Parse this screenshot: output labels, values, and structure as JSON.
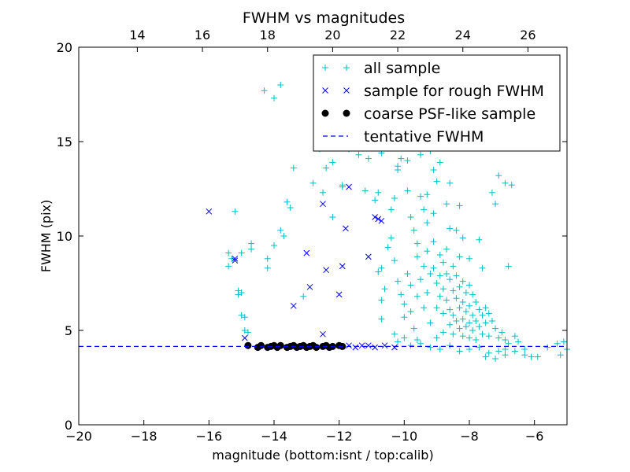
{
  "chart_data": {
    "type": "scatter",
    "title": "FWHM vs magnitudes",
    "xlabel": "magnitude (bottom:isnt / top:calib)",
    "ylabel": "FWHM (pix)",
    "xlim": [
      -20,
      -5
    ],
    "ylim": [
      0,
      20
    ],
    "top_xlim": [
      12.2,
      27.2
    ],
    "x_ticks": [
      -20,
      -18,
      -16,
      -14,
      -12,
      -10,
      -8,
      -6
    ],
    "x_tick_labels": [
      "−20",
      "−18",
      "−16",
      "−14",
      "−12",
      "−10",
      "−8",
      "−6"
    ],
    "y_ticks": [
      0,
      5,
      10,
      15,
      20
    ],
    "y_tick_labels": [
      "0",
      "5",
      "10",
      "15",
      "20"
    ],
    "top_ticks": [
      14,
      16,
      18,
      20,
      22,
      24,
      26
    ],
    "top_tick_labels": [
      "14",
      "16",
      "18",
      "20",
      "22",
      "24",
      "26"
    ],
    "grid": false,
    "legend_position": "upper-right",
    "series": [
      {
        "name": "all sample",
        "marker": "+",
        "color": "#00bfbf",
        "points": [
          [
            -14.3,
            17.7
          ],
          [
            -14.0,
            17.3
          ],
          [
            -13.8,
            18.0
          ],
          [
            -15.2,
            11.3
          ],
          [
            -15.4,
            9.1
          ],
          [
            -15.3,
            8.8
          ],
          [
            -15.4,
            8.4
          ],
          [
            -15.0,
            9.1
          ],
          [
            -14.7,
            9.6
          ],
          [
            -14.7,
            9.3
          ],
          [
            -15.1,
            7.1
          ],
          [
            -15.0,
            7.0
          ],
          [
            -15.1,
            6.9
          ],
          [
            -15.0,
            5.8
          ],
          [
            -14.9,
            5.7
          ],
          [
            -14.9,
            5.0
          ],
          [
            -14.8,
            4.9
          ],
          [
            -14.2,
            8.8
          ],
          [
            -14.2,
            8.3
          ],
          [
            -14.0,
            9.5
          ],
          [
            -13.8,
            10.3
          ],
          [
            -13.7,
            10.0
          ],
          [
            -13.6,
            11.8
          ],
          [
            -13.5,
            11.5
          ],
          [
            -13.4,
            13.6
          ],
          [
            -13.1,
            6.8
          ],
          [
            -12.8,
            12.8
          ],
          [
            -12.6,
            14.6
          ],
          [
            -12.5,
            12.3
          ],
          [
            -12.4,
            13.6
          ],
          [
            -12.2,
            13.9
          ],
          [
            -12.2,
            11.0
          ],
          [
            -11.9,
            12.6
          ],
          [
            -11.9,
            12.7
          ],
          [
            -11.7,
            14.6
          ],
          [
            -11.6,
            15.9
          ],
          [
            -11.4,
            14.3
          ],
          [
            -11.4,
            16.0
          ],
          [
            -11.2,
            12.4
          ],
          [
            -11.1,
            14.1
          ],
          [
            -11.0,
            14.9
          ],
          [
            -10.9,
            11.9
          ],
          [
            -10.8,
            12.3
          ],
          [
            -10.7,
            14.4
          ],
          [
            -10.8,
            8.1
          ],
          [
            -10.7,
            8.3
          ],
          [
            -10.7,
            6.6
          ],
          [
            -10.7,
            5.6
          ],
          [
            -10.6,
            7.2
          ],
          [
            -10.5,
            9.4
          ],
          [
            -10.4,
            11.4
          ],
          [
            -10.3,
            12.0
          ],
          [
            -10.2,
            13.7
          ],
          [
            -10.2,
            13.5
          ],
          [
            -10.1,
            14.1
          ],
          [
            -9.9,
            14.0
          ],
          [
            -9.9,
            12.4
          ],
          [
            -9.8,
            11.0
          ],
          [
            -9.7,
            10.3
          ],
          [
            -9.6,
            9.6
          ],
          [
            -9.6,
            8.9
          ],
          [
            -9.5,
            14.3
          ],
          [
            -9.5,
            12.1
          ],
          [
            -9.4,
            11.4
          ],
          [
            -9.3,
            12.2
          ],
          [
            -9.3,
            10.7
          ],
          [
            -9.2,
            14.5
          ],
          [
            -9.1,
            13.5
          ],
          [
            -9.1,
            11.2
          ],
          [
            -9.0,
            12.9
          ],
          [
            -8.9,
            13.9
          ],
          [
            -8.7,
            11.7
          ],
          [
            -8.6,
            12.8
          ],
          [
            -8.6,
            10.4
          ],
          [
            -8.4,
            10.3
          ],
          [
            -8.3,
            11.6
          ],
          [
            -8.2,
            9.9
          ],
          [
            -8.0,
            8.8
          ],
          [
            -7.7,
            9.8
          ],
          [
            -7.6,
            8.3
          ],
          [
            -7.3,
            12.3
          ],
          [
            -7.2,
            11.7
          ],
          [
            -7.1,
            13.2
          ],
          [
            -6.9,
            12.8
          ],
          [
            -6.7,
            12.7
          ],
          [
            -6.8,
            8.4
          ],
          [
            -10.4,
            9.9
          ],
          [
            -10.3,
            8.7
          ],
          [
            -10.2,
            7.6
          ],
          [
            -10.1,
            6.9
          ],
          [
            -10.0,
            6.4
          ],
          [
            -10.0,
            5.7
          ],
          [
            -9.9,
            8.0
          ],
          [
            -9.8,
            7.4
          ],
          [
            -9.8,
            6.0
          ],
          [
            -9.7,
            5.1
          ],
          [
            -9.6,
            6.8
          ],
          [
            -9.6,
            4.5
          ],
          [
            -9.5,
            7.7
          ],
          [
            -9.4,
            8.4
          ],
          [
            -9.4,
            6.2
          ],
          [
            -9.3,
            9.2
          ],
          [
            -9.3,
            7.0
          ],
          [
            -9.2,
            8.0
          ],
          [
            -9.2,
            5.4
          ],
          [
            -9.1,
            9.7
          ],
          [
            -9.1,
            8.3
          ],
          [
            -9.0,
            7.5
          ],
          [
            -9.0,
            6.2
          ],
          [
            -9.0,
            4.6
          ],
          [
            -8.9,
            9.0
          ],
          [
            -8.9,
            7.9
          ],
          [
            -8.9,
            6.8
          ],
          [
            -8.8,
            8.6
          ],
          [
            -8.8,
            7.2
          ],
          [
            -8.8,
            5.9
          ],
          [
            -8.8,
            4.9
          ],
          [
            -8.7,
            9.3
          ],
          [
            -8.7,
            8.0
          ],
          [
            -8.7,
            6.6
          ],
          [
            -8.6,
            7.7
          ],
          [
            -8.6,
            6.1
          ],
          [
            -8.6,
            5.3
          ],
          [
            -8.5,
            8.4
          ],
          [
            -8.5,
            7.1
          ],
          [
            -8.5,
            5.8
          ],
          [
            -8.5,
            4.8
          ],
          [
            -8.4,
            7.9
          ],
          [
            -8.4,
            6.7
          ],
          [
            -8.4,
            5.5
          ],
          [
            -8.3,
            8.9
          ],
          [
            -8.3,
            7.3
          ],
          [
            -8.3,
            6.2
          ],
          [
            -8.3,
            5.1
          ],
          [
            -8.2,
            7.6
          ],
          [
            -8.2,
            6.5
          ],
          [
            -8.2,
            5.6
          ],
          [
            -8.2,
            4.7
          ],
          [
            -8.1,
            7.0
          ],
          [
            -8.1,
            6.0
          ],
          [
            -8.1,
            5.2
          ],
          [
            -8.0,
            7.4
          ],
          [
            -8.0,
            6.3
          ],
          [
            -8.0,
            5.4
          ],
          [
            -8.0,
            4.6
          ],
          [
            -7.9,
            6.9
          ],
          [
            -7.9,
            5.8
          ],
          [
            -7.9,
            5.0
          ],
          [
            -7.8,
            6.5
          ],
          [
            -7.8,
            5.5
          ],
          [
            -7.8,
            4.5
          ],
          [
            -7.7,
            6.1
          ],
          [
            -7.7,
            5.2
          ],
          [
            -7.6,
            5.8
          ],
          [
            -7.6,
            4.8
          ],
          [
            -7.5,
            6.2
          ],
          [
            -7.5,
            5.4
          ],
          [
            -7.4,
            5.9
          ],
          [
            -7.4,
            4.7
          ],
          [
            -7.3,
            5.5
          ],
          [
            -7.2,
            5.1
          ],
          [
            -7.1,
            4.6
          ],
          [
            -7.0,
            4.9
          ],
          [
            -6.9,
            4.5
          ],
          [
            -6.8,
            4.3
          ],
          [
            -6.6,
            4.7
          ],
          [
            -6.5,
            4.4
          ],
          [
            -6.3,
            4.0
          ],
          [
            -10.3,
            4.8
          ],
          [
            -10.2,
            4.4
          ],
          [
            -10.0,
            4.6
          ],
          [
            -9.8,
            4.2
          ],
          [
            -9.5,
            4.3
          ],
          [
            -9.2,
            4.1
          ],
          [
            -8.9,
            4.0
          ],
          [
            -8.6,
            4.2
          ],
          [
            -8.3,
            3.9
          ],
          [
            -8.0,
            4.0
          ],
          [
            -7.7,
            4.1
          ],
          [
            -7.4,
            3.8
          ],
          [
            -7.1,
            3.9
          ],
          [
            -6.9,
            4.0
          ],
          [
            -6.6,
            3.9
          ],
          [
            -6.3,
            3.7
          ],
          [
            -6.1,
            3.6
          ],
          [
            -5.9,
            3.6
          ],
          [
            -5.6,
            4.1
          ],
          [
            -5.3,
            4.3
          ],
          [
            -5.1,
            4.4
          ],
          [
            -5.2,
            3.7
          ],
          [
            -5.0,
            4.0
          ],
          [
            -7.5,
            3.6
          ],
          [
            -7.2,
            3.5
          ],
          [
            -6.9,
            3.7
          ]
        ]
      },
      {
        "name": "sample for rough FWHM",
        "marker": "x",
        "color": "#0000ff",
        "points": [
          [
            -16.0,
            11.3
          ],
          [
            -15.2,
            8.7
          ],
          [
            -15.2,
            8.8
          ],
          [
            -14.9,
            4.6
          ],
          [
            -13.4,
            6.3
          ],
          [
            -13.0,
            9.1
          ],
          [
            -12.9,
            7.3
          ],
          [
            -12.5,
            11.7
          ],
          [
            -12.4,
            8.2
          ],
          [
            -12.5,
            4.8
          ],
          [
            -12.0,
            6.9
          ],
          [
            -11.9,
            8.4
          ],
          [
            -11.8,
            10.4
          ],
          [
            -11.7,
            12.6
          ],
          [
            -11.1,
            8.9
          ],
          [
            -10.9,
            11.0
          ],
          [
            -10.8,
            10.9
          ],
          [
            -10.7,
            10.8
          ],
          [
            -11.3,
            4.2
          ],
          [
            -11.1,
            4.2
          ],
          [
            -10.9,
            4.1
          ],
          [
            -10.6,
            4.2
          ],
          [
            -10.3,
            4.1
          ],
          [
            -11.5,
            4.1
          ],
          [
            -11.7,
            4.2
          ]
        ]
      },
      {
        "name": "coarse PSF-like sample",
        "marker": "o",
        "color": "#000000",
        "points": [
          [
            -14.8,
            4.2
          ],
          [
            -14.5,
            4.1
          ],
          [
            -14.4,
            4.2
          ],
          [
            -14.2,
            4.1
          ],
          [
            -14.1,
            4.15
          ],
          [
            -14.0,
            4.2
          ],
          [
            -13.9,
            4.1
          ],
          [
            -13.8,
            4.2
          ],
          [
            -13.6,
            4.1
          ],
          [
            -13.5,
            4.15
          ],
          [
            -13.4,
            4.2
          ],
          [
            -13.3,
            4.1
          ],
          [
            -13.2,
            4.15
          ],
          [
            -13.1,
            4.2
          ],
          [
            -13.0,
            4.1
          ],
          [
            -12.9,
            4.15
          ],
          [
            -12.8,
            4.2
          ],
          [
            -12.7,
            4.1
          ],
          [
            -12.5,
            4.15
          ],
          [
            -12.4,
            4.2
          ],
          [
            -12.3,
            4.1
          ],
          [
            -12.2,
            4.15
          ],
          [
            -12.0,
            4.2
          ],
          [
            -11.9,
            4.15
          ]
        ]
      },
      {
        "name": "tentative FWHM",
        "marker": "dashed-line",
        "color": "#0000ff",
        "y": 4.15
      }
    ]
  }
}
